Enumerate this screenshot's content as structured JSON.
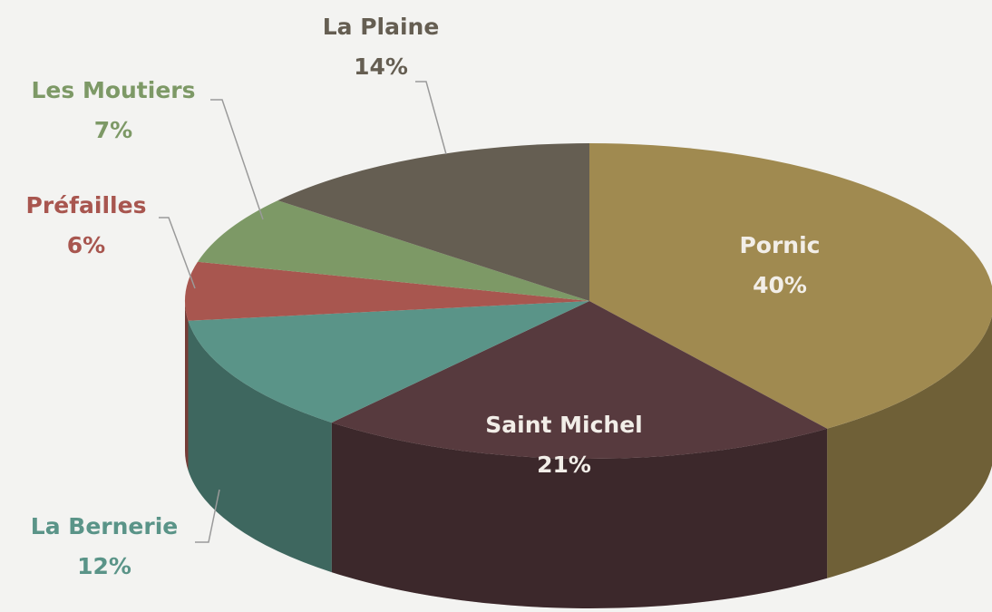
{
  "chart_data": {
    "type": "pie",
    "categories": [
      "Pornic",
      "Saint Michel",
      "La Bernerie",
      "Préfailles",
      "Les Moutiers",
      "La Plaine"
    ],
    "values": [
      40,
      21,
      12,
      6,
      7,
      14
    ],
    "value_labels": [
      "40%",
      "21%",
      "12%",
      "6%",
      "7%",
      "14%"
    ],
    "colors": [
      "#a08a50",
      "#573a3e",
      "#5a9488",
      "#a8564f",
      "#7d9966",
      "#655e52"
    ]
  }
}
